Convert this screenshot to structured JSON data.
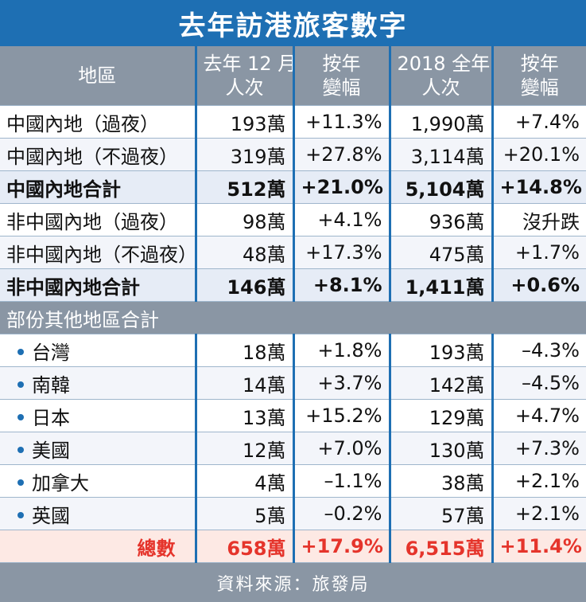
{
  "chart_data": {
    "type": "table",
    "title": "去年訪港旅客數字",
    "columns": [
      "地區",
      "去年 12 月\n人次",
      "按年\n變幅",
      "2018 全年\n人次",
      "按年\n變幅"
    ],
    "rows": [
      {
        "style": "band",
        "cells": [
          "中國內地（過夜）",
          "193萬",
          "+11.3%",
          "1,990萬",
          "+7.4%"
        ]
      },
      {
        "style": "band alt",
        "cells": [
          "中國內地（不過夜）",
          "319萬",
          "+27.8%",
          "3,114萬",
          "+20.1%"
        ]
      },
      {
        "style": "bold",
        "cells": [
          "中國內地合計",
          "512萬",
          "+21.0%",
          "5,104萬",
          "+14.8%"
        ]
      },
      {
        "style": "band",
        "cells": [
          "非中國內地（過夜）",
          "98萬",
          "+4.1%",
          "936萬",
          "沒升跌"
        ]
      },
      {
        "style": "band alt",
        "cells": [
          "非中國內地（不過夜）",
          "48萬",
          "+17.3%",
          "475萬",
          "+1.7%"
        ]
      },
      {
        "style": "bold",
        "cells": [
          "非中國內地合計",
          "146萬",
          "+8.1%",
          "1,411萬",
          "+0.6%"
        ]
      },
      {
        "style": "section",
        "cells": [
          "部份其他地區合計"
        ]
      },
      {
        "style": "band",
        "bullet": true,
        "cells": [
          "台灣",
          "18萬",
          "+1.8%",
          "193萬",
          "–4.3%"
        ]
      },
      {
        "style": "band alt",
        "bullet": true,
        "cells": [
          "南韓",
          "14萬",
          "+3.7%",
          "142萬",
          "–4.5%"
        ]
      },
      {
        "style": "band",
        "bullet": true,
        "cells": [
          "日本",
          "13萬",
          "+15.2%",
          "129萬",
          "+4.7%"
        ]
      },
      {
        "style": "band alt",
        "bullet": true,
        "cells": [
          "美國",
          "12萬",
          "+7.0%",
          "130萬",
          "+7.3%"
        ]
      },
      {
        "style": "band",
        "bullet": true,
        "cells": [
          "加拿大",
          "4萬",
          "–1.1%",
          "38萬",
          "+2.1%"
        ]
      },
      {
        "style": "band alt",
        "bullet": true,
        "cells": [
          "英國",
          "5萬",
          "–0.2%",
          "57萬",
          "+2.1%"
        ]
      },
      {
        "style": "total",
        "cells": [
          "總數",
          "658萬",
          "+17.9%",
          "6,515萬",
          "+11.4%"
        ]
      }
    ],
    "footer": "資料來源：旅發局"
  }
}
